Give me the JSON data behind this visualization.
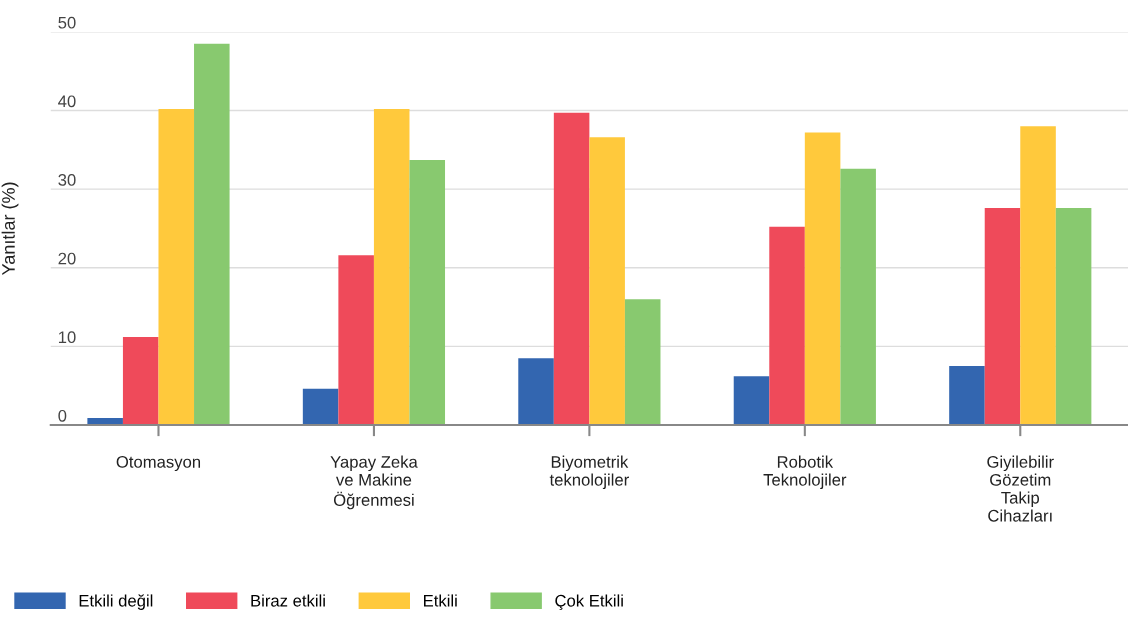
{
  "chart_data": {
    "type": "bar",
    "ylabel": "Yanıtlar (%)",
    "categories": [
      "Otomasyon",
      "Yapay Zeka\nve Makine\nÖğrenmesi",
      "Biyometrik\nteknolojiler",
      "Robotik\nTeknolojiler",
      "Giyilebilir\nGözetim\nTakip\nCihazları"
    ],
    "series": [
      {
        "name": "Etkili değil",
        "color": "#3366b0",
        "values": [
          0.9,
          4.6,
          8.5,
          6.2,
          7.5
        ]
      },
      {
        "name": "Biraz etkili",
        "color": "#ef4a5a",
        "values": [
          11.2,
          21.6,
          39.7,
          25.2,
          27.6
        ]
      },
      {
        "name": "Etkili",
        "color": "#ffc93c",
        "values": [
          40.2,
          40.2,
          36.6,
          37.2,
          38.0
        ]
      },
      {
        "name": "Çok Etkili",
        "color": "#88c96f",
        "values": [
          48.5,
          33.7,
          16.0,
          32.6,
          27.6
        ]
      }
    ],
    "ylim": [
      0,
      50
    ],
    "yticks": [
      0,
      10,
      20,
      30,
      40,
      50
    ],
    "grid": "y",
    "legend": "bottom left"
  }
}
